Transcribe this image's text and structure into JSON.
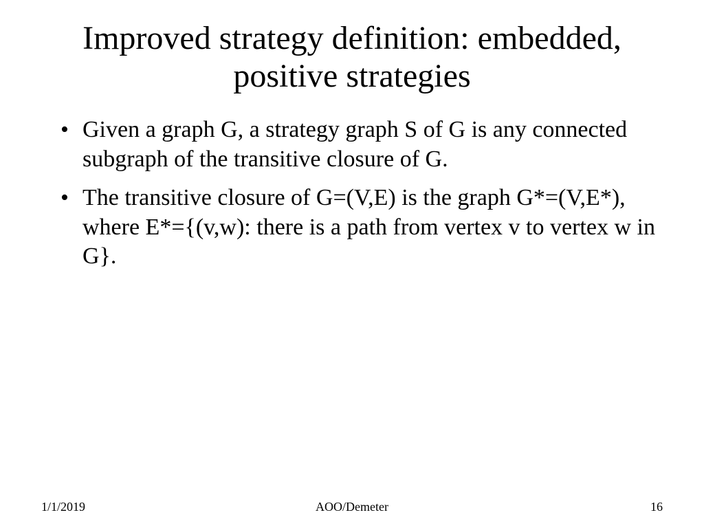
{
  "slide": {
    "title": "Improved strategy definition: embedded, positive strategies",
    "bullets": [
      "Given a graph G, a strategy graph S of G is any connected subgraph of the transitive closure of G.",
      "The transitive closure of G=(V,E) is the graph G*=(V,E*), where E*={(v,w): there is a path from vertex v to vertex w in G}."
    ],
    "footer": {
      "date": "1/1/2019",
      "center": "AOO/Demeter",
      "page": "16"
    },
    "style": {
      "background_color": "#ffffff",
      "text_color": "#000000",
      "title_fontsize": 48,
      "body_fontsize": 34,
      "footer_fontsize": 18,
      "font_family": "Times New Roman"
    }
  }
}
